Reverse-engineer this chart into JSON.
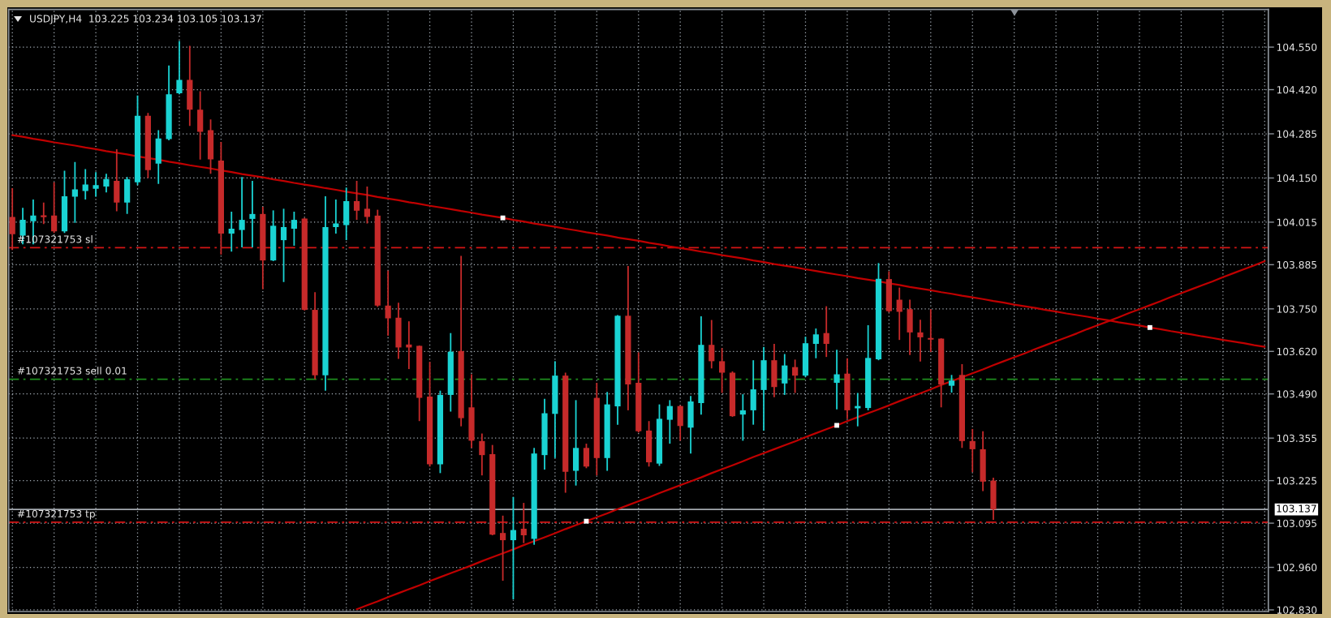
{
  "chart_data": {
    "type": "candlestick",
    "title": "USDJPY,H4  103.225 103.234 103.105 103.137",
    "categories": [
      null,
      null,
      null,
      null,
      null,
      null,
      null,
      null,
      null,
      null,
      null,
      null,
      null,
      null,
      null,
      null,
      null,
      null,
      null,
      null,
      null,
      null,
      null,
      null,
      null,
      null,
      null,
      null,
      null,
      null,
      null,
      null,
      null,
      null,
      null,
      null,
      null,
      null,
      null,
      null,
      null,
      null,
      null,
      null,
      null,
      null,
      null,
      null,
      null,
      null,
      null,
      null,
      null,
      null,
      null,
      null,
      null,
      null,
      null,
      null,
      null,
      null,
      null,
      null,
      null,
      null,
      null,
      null,
      null,
      null,
      null,
      null,
      null,
      null,
      null,
      null,
      null,
      null,
      null,
      null,
      null,
      null,
      null,
      null,
      null,
      null,
      null,
      null,
      null,
      null,
      null,
      null,
      null,
      null,
      null,
      null,
      null,
      null,
      null,
      null,
      null,
      null,
      null,
      null,
      null,
      null,
      null,
      null,
      null,
      null,
      null,
      null,
      null,
      null,
      null,
      null,
      null,
      null,
      null,
      null,
      null
    ],
    "ohlc": [
      [
        104.031,
        104.119,
        103.93,
        103.978
      ],
      [
        103.974,
        104.059,
        103.947,
        104.022
      ],
      [
        104.018,
        104.084,
        103.947,
        104.035
      ],
      [
        104.036,
        104.075,
        104.009,
        104.03
      ],
      [
        104.035,
        104.137,
        103.982,
        103.987
      ],
      [
        103.987,
        104.172,
        103.982,
        104.094
      ],
      [
        104.093,
        104.199,
        104.013,
        104.115
      ],
      [
        104.11,
        104.177,
        104.084,
        104.13
      ],
      [
        104.117,
        104.168,
        104.093,
        104.128
      ],
      [
        104.124,
        104.163,
        104.106,
        104.147
      ],
      [
        104.141,
        104.238,
        104.048,
        104.075
      ],
      [
        104.075,
        104.153,
        104.04,
        104.146
      ],
      [
        104.137,
        104.402,
        104.128,
        104.34
      ],
      [
        104.34,
        104.349,
        104.15,
        104.174
      ],
      [
        104.194,
        104.296,
        104.132,
        104.271
      ],
      [
        104.269,
        104.494,
        104.265,
        104.406
      ],
      [
        104.409,
        104.569,
        104.406,
        104.45
      ],
      [
        104.45,
        104.554,
        104.309,
        104.359
      ],
      [
        104.359,
        104.415,
        104.206,
        104.291
      ],
      [
        104.296,
        104.329,
        104.163,
        104.207
      ],
      [
        104.203,
        104.26,
        103.916,
        103.98
      ],
      [
        103.98,
        104.047,
        103.925,
        103.995
      ],
      [
        103.991,
        104.153,
        103.938,
        104.022
      ],
      [
        104.025,
        104.141,
        103.938,
        104.04
      ],
      [
        104.04,
        104.062,
        103.81,
        103.898
      ],
      [
        103.898,
        104.051,
        103.896,
        104.004
      ],
      [
        103.96,
        104.056,
        103.832,
        104.0
      ],
      [
        103.995,
        104.047,
        103.943,
        104.022
      ],
      [
        104.026,
        104.028,
        103.745,
        103.747
      ],
      [
        103.747,
        103.801,
        103.535,
        103.547
      ],
      [
        103.547,
        104.094,
        103.5,
        104.0
      ],
      [
        104.0,
        104.084,
        103.98,
        104.011
      ],
      [
        104.006,
        104.121,
        103.96,
        104.079
      ],
      [
        104.079,
        104.141,
        104.022,
        104.05
      ],
      [
        104.056,
        104.124,
        104.011,
        104.031
      ],
      [
        104.035,
        104.053,
        103.756,
        103.76
      ],
      [
        103.76,
        103.867,
        103.668,
        103.721
      ],
      [
        103.723,
        103.769,
        103.597,
        103.632
      ],
      [
        103.641,
        103.712,
        103.566,
        103.632
      ],
      [
        103.637,
        103.638,
        103.407,
        103.478
      ],
      [
        103.482,
        103.588,
        103.268,
        103.275
      ],
      [
        103.275,
        103.5,
        103.248,
        103.487
      ],
      [
        103.487,
        103.676,
        103.436,
        103.619
      ],
      [
        103.621,
        103.912,
        103.391,
        103.416
      ],
      [
        103.449,
        103.55,
        103.325,
        103.347
      ],
      [
        103.346,
        103.369,
        103.241,
        103.303
      ],
      [
        103.306,
        103.334,
        103.058,
        103.06
      ],
      [
        103.065,
        103.118,
        102.919,
        103.043
      ],
      [
        103.043,
        103.175,
        102.862,
        103.074
      ],
      [
        103.078,
        103.157,
        103.034,
        103.058
      ],
      [
        103.047,
        103.325,
        103.029,
        103.308
      ],
      [
        103.303,
        103.475,
        103.259,
        103.431
      ],
      [
        103.429,
        103.59,
        103.294,
        103.546
      ],
      [
        103.546,
        103.555,
        103.188,
        103.252
      ],
      [
        103.255,
        103.471,
        103.21,
        103.325
      ],
      [
        103.325,
        103.338,
        103.263,
        103.268
      ],
      [
        103.478,
        103.524,
        103.241,
        103.294
      ],
      [
        103.294,
        103.496,
        103.255,
        103.458
      ],
      [
        103.452,
        103.731,
        103.396,
        103.729
      ],
      [
        103.729,
        103.881,
        103.44,
        103.519
      ],
      [
        103.524,
        103.617,
        103.372,
        103.376
      ],
      [
        103.378,
        103.407,
        103.268,
        103.281
      ],
      [
        103.277,
        103.458,
        103.27,
        103.414
      ],
      [
        103.411,
        103.471,
        103.338,
        103.453
      ],
      [
        103.453,
        103.455,
        103.347,
        103.392
      ],
      [
        103.387,
        103.484,
        103.308,
        103.467
      ],
      [
        103.462,
        103.727,
        103.427,
        103.64
      ],
      [
        103.64,
        103.716,
        103.568,
        103.59
      ],
      [
        103.59,
        103.63,
        103.493,
        103.555
      ],
      [
        103.555,
        103.559,
        103.42,
        103.422
      ],
      [
        103.427,
        103.489,
        103.347,
        103.44
      ],
      [
        103.44,
        103.593,
        103.396,
        103.504
      ],
      [
        103.502,
        103.634,
        103.378,
        103.593
      ],
      [
        103.593,
        103.643,
        103.48,
        103.511
      ],
      [
        103.522,
        103.612,
        103.487,
        103.577
      ],
      [
        103.572,
        103.595,
        103.493,
        103.546
      ],
      [
        103.546,
        103.665,
        103.542,
        103.645
      ],
      [
        103.643,
        103.69,
        103.599,
        103.672
      ],
      [
        103.676,
        103.758,
        103.603,
        103.643
      ],
      [
        103.524,
        103.625,
        103.443,
        103.55
      ],
      [
        103.552,
        103.599,
        103.414,
        103.44
      ],
      [
        103.446,
        103.493,
        103.391,
        103.453
      ],
      [
        103.447,
        103.7,
        103.44,
        103.6
      ],
      [
        103.596,
        103.89,
        103.593,
        103.842
      ],
      [
        103.841,
        103.865,
        103.739,
        103.743
      ],
      [
        103.778,
        103.815,
        103.655,
        103.741
      ],
      [
        103.749,
        103.778,
        103.609,
        103.678
      ],
      [
        103.678,
        103.717,
        103.589,
        103.663
      ],
      [
        103.661,
        103.749,
        103.618,
        103.656
      ],
      [
        103.659,
        103.66,
        103.449,
        103.519
      ],
      [
        103.515,
        103.548,
        103.494,
        103.531
      ],
      [
        103.548,
        103.581,
        103.325,
        103.346
      ],
      [
        103.346,
        103.383,
        103.251,
        103.321
      ],
      [
        103.321,
        103.376,
        103.193,
        103.222
      ],
      [
        103.225,
        103.234,
        103.105,
        103.137
      ],
      null,
      null,
      null,
      null,
      null,
      null,
      null,
      null,
      null,
      null,
      null,
      null,
      null,
      null,
      null,
      null,
      null,
      null,
      null,
      null,
      null,
      null,
      null,
      null,
      null,
      null
    ],
    "colors": [
      "#c62a2a",
      "#1ad3d3",
      "#1ad3d3",
      "#c62a2a",
      "#c62a2a",
      "#1ad3d3",
      "#1ad3d3",
      "#1ad3d3",
      "#1ad3d3",
      "#1ad3d3",
      "#c62a2a",
      "#1ad3d3",
      "#1ad3d3",
      "#c62a2a",
      "#1ad3d3",
      "#1ad3d3",
      "#1ad3d3",
      "#c62a2a",
      "#c62a2a",
      "#c62a2a",
      "#c62a2a",
      "#1ad3d3",
      "#1ad3d3",
      "#1ad3d3",
      "#c62a2a",
      "#1ad3d3",
      "#1ad3d3",
      "#1ad3d3",
      "#c62a2a",
      "#c62a2a",
      "#1ad3d3",
      "#1ad3d3",
      "#1ad3d3",
      "#c62a2a",
      "#c62a2a",
      "#c62a2a",
      "#c62a2a",
      "#c62a2a",
      "#c62a2a",
      "#c62a2a",
      "#c62a2a",
      "#1ad3d3",
      "#1ad3d3",
      "#c62a2a",
      "#c62a2a",
      "#c62a2a",
      "#c62a2a",
      "#c62a2a",
      "#1ad3d3",
      "#c62a2a",
      "#1ad3d3",
      "#1ad3d3",
      "#1ad3d3",
      "#c62a2a",
      "#1ad3d3",
      "#c62a2a",
      "#c62a2a",
      "#1ad3d3",
      "#1ad3d3",
      "#c62a2a",
      "#c62a2a",
      "#c62a2a",
      "#1ad3d3",
      "#1ad3d3",
      "#c62a2a",
      "#1ad3d3",
      "#1ad3d3",
      "#c62a2a",
      "#c62a2a",
      "#c62a2a",
      "#1ad3d3",
      "#1ad3d3",
      "#1ad3d3",
      "#c62a2a",
      "#1ad3d3",
      "#c62a2a",
      "#1ad3d3",
      "#1ad3d3",
      "#c62a2a",
      "#1ad3d3",
      "#c62a2a",
      "#1ad3d3",
      "#1ad3d3",
      "#1ad3d3",
      "#c62a2a",
      "#c62a2a",
      "#c62a2a",
      "#c62a2a",
      "#c62a2a",
      "#c62a2a",
      "#1ad3d3",
      "#c62a2a",
      "#c62a2a",
      "#c62a2a",
      "#c62a2a",
      null,
      null,
      null,
      null,
      null,
      null,
      null,
      null,
      null,
      null,
      null,
      null,
      null,
      null,
      null,
      null,
      null,
      null,
      null,
      null,
      null,
      null,
      null,
      null,
      null,
      null
    ],
    "series": [
      {
        "type": "line",
        "color": "#c00000",
        "values": [
          104.281,
          104.276,
          104.27,
          104.265,
          104.259,
          104.254,
          104.249,
          104.243,
          104.238,
          104.232,
          104.227,
          104.222,
          104.216,
          104.211,
          104.206,
          104.2,
          104.195,
          104.189,
          104.184,
          104.179,
          104.173,
          104.168,
          104.162,
          104.157,
          104.152,
          104.146,
          104.141,
          104.135,
          104.13,
          104.125,
          104.119,
          104.114,
          104.108,
          104.103,
          104.098,
          104.092,
          104.087,
          104.082,
          104.076,
          104.071,
          104.065,
          104.06,
          104.055,
          104.049,
          104.044,
          104.038,
          104.033,
          104.028,
          104.022,
          104.017,
          104.011,
          104.006,
          104.001,
          103.995,
          103.99,
          103.984,
          103.979,
          103.974,
          103.968,
          103.963,
          103.958,
          103.952,
          103.947,
          103.941,
          103.936,
          103.931,
          103.925,
          103.92,
          103.914,
          103.909,
          103.904,
          103.898,
          103.893,
          103.887,
          103.882,
          103.877,
          103.871,
          103.866,
          103.86,
          103.855,
          103.85,
          103.844,
          103.839,
          103.834,
          103.828,
          103.823,
          103.817,
          103.812,
          103.807,
          103.801,
          103.796,
          103.79,
          103.785,
          103.78,
          103.774,
          103.769,
          103.763,
          103.758,
          103.753,
          103.747,
          103.742,
          103.736,
          103.731,
          103.726,
          103.72,
          103.715,
          103.709,
          103.704,
          103.699,
          103.693,
          103.688,
          103.682,
          103.677,
          103.672,
          103.666,
          103.661,
          103.655,
          103.65,
          103.645,
          103.639,
          103.634
        ]
      },
      {
        "type": "line",
        "color": "#c00000",
        "values": [
          null,
          null,
          null,
          null,
          null,
          null,
          null,
          null,
          null,
          null,
          null,
          null,
          null,
          null,
          null,
          null,
          null,
          null,
          null,
          null,
          null,
          null,
          null,
          null,
          null,
          null,
          null,
          null,
          null,
          null,
          null,
          null,
          null,
          102.832,
          102.844,
          102.856,
          102.869,
          102.881,
          102.893,
          102.905,
          102.918,
          102.93,
          102.942,
          102.954,
          102.966,
          102.979,
          102.991,
          103.003,
          103.015,
          103.028,
          103.04,
          103.052,
          103.064,
          103.077,
          103.089,
          103.101,
          103.113,
          103.125,
          103.138,
          103.15,
          103.162,
          103.174,
          103.187,
          103.199,
          103.211,
          103.223,
          103.235,
          103.248,
          103.26,
          103.272,
          103.284,
          103.297,
          103.309,
          103.321,
          103.333,
          103.345,
          103.358,
          103.37,
          103.382,
          103.394,
          103.407,
          103.419,
          103.431,
          103.443,
          103.455,
          103.468,
          103.48,
          103.492,
          103.504,
          103.517,
          103.529,
          103.541,
          103.553,
          103.565,
          103.578,
          103.59,
          103.602,
          103.614,
          103.627,
          103.639,
          103.651,
          103.663,
          103.675,
          103.688,
          103.7,
          103.712,
          103.724,
          103.737,
          103.749,
          103.761,
          103.773,
          103.786,
          103.798,
          103.81,
          103.822,
          103.834,
          103.847,
          103.859,
          103.871,
          103.883,
          103.896
        ]
      },
      {
        "type": "scatter",
        "color": "#ffffff",
        "marker": "square",
        "values": [
          null,
          null,
          null,
          null,
          null,
          null,
          null,
          null,
          null,
          null,
          null,
          null,
          null,
          null,
          null,
          null,
          null,
          null,
          null,
          null,
          null,
          null,
          null,
          null,
          null,
          null,
          null,
          null,
          null,
          null,
          null,
          null,
          null,
          null,
          null,
          null,
          null,
          null,
          null,
          null,
          null,
          null,
          null,
          null,
          null,
          null,
          null,
          104.028,
          null,
          null,
          null,
          null,
          null,
          null,
          null,
          103.101,
          null,
          null,
          null,
          null,
          null,
          null,
          null,
          null,
          null,
          null,
          null,
          null,
          null,
          null,
          null,
          null,
          null,
          null,
          null,
          null,
          null,
          null,
          null,
          103.394,
          null,
          null,
          null,
          null,
          null,
          null,
          null,
          null,
          null,
          null,
          null,
          null,
          null,
          null,
          null,
          null,
          null,
          null,
          null,
          null,
          null,
          null,
          null,
          null,
          null,
          null,
          null,
          null,
          null,
          103.693,
          null,
          null,
          null,
          null,
          null,
          null,
          null,
          null,
          null,
          null,
          null
        ]
      }
    ],
    "ylim": [
      102.825,
      104.665
    ],
    "yticks": [
      {
        "value": 104.55,
        "label": "104.550"
      },
      {
        "value": 104.42,
        "label": "104.420"
      },
      {
        "value": 104.285,
        "label": "104.285"
      },
      {
        "value": 104.15,
        "label": "104.150"
      },
      {
        "value": 104.015,
        "label": "104.015"
      },
      {
        "value": 103.885,
        "label": "103.885"
      },
      {
        "value": 103.75,
        "label": "103.750"
      },
      {
        "value": 103.62,
        "label": "103.620"
      },
      {
        "value": 103.49,
        "label": "103.490"
      },
      {
        "value": 103.355,
        "label": "103.355"
      },
      {
        "value": 103.225,
        "label": "103.225"
      },
      {
        "value": 103.095,
        "label": "103.095"
      },
      {
        "value": 102.96,
        "label": "102.960"
      },
      {
        "value": 102.83,
        "label": "102.830"
      }
    ],
    "ref_lines": [
      {
        "axis": "y",
        "value": 103.937,
        "label": "#107321753 sl",
        "color": "#d41414",
        "line_style": "dashdot"
      },
      {
        "axis": "y",
        "value": 103.535,
        "label": "#107321753 sell 0.01",
        "color": "#1f8f1f",
        "line_style": "dashdot"
      },
      {
        "axis": "y",
        "value": 103.137,
        "label": "103.137",
        "color": "#a3a8ae",
        "line_style": "solid"
      },
      {
        "axis": "y",
        "value": 103.098,
        "label": "#107321753 tp",
        "color": "#d41414",
        "line_style": "dashdot"
      }
    ],
    "grid": true,
    "tick_labels": "y"
  }
}
